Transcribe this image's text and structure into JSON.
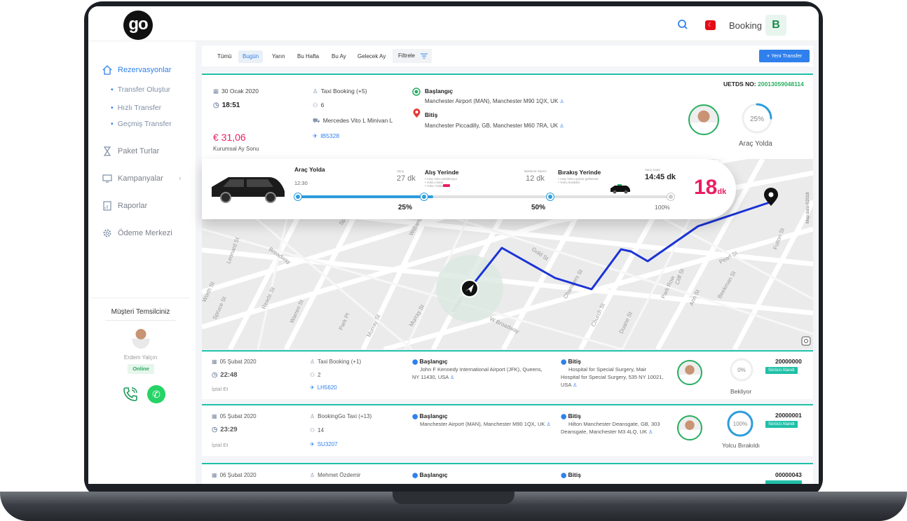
{
  "header": {
    "logo": "go",
    "booking_label": "Booking",
    "avatar_letter": "B",
    "flag_symbol": "☾"
  },
  "sidebar": {
    "items": [
      {
        "label": "Rezervasyonlar",
        "icon": "home-icon"
      },
      {
        "label": "Paket Turlar",
        "icon": "hourglass-icon"
      },
      {
        "label": "Kampanyalar",
        "icon": "monitor-icon",
        "chevron": "›"
      },
      {
        "label": "Raporlar",
        "icon": "report-icon"
      },
      {
        "label": "Ödeme Merkezi",
        "icon": "gear-icon"
      }
    ],
    "subitems": [
      "Transfer Oluştur",
      "Hızlı Transfer",
      "Geçmiş Transfer"
    ],
    "rep": {
      "title": "Müşteri Temsilciniz",
      "name": "Erdem Yalçın",
      "status": "Online",
      "wa": "✆"
    }
  },
  "filters": {
    "tabs": [
      "Tümü",
      "Bugün",
      "Yarın",
      "Bu Hafta",
      "Bu Ay",
      "Gelecek Ay"
    ],
    "active": "Bugün",
    "filter_label": "Filtrele",
    "new_transfer": "+ Yeni Transfer"
  },
  "current": {
    "date": "30 Ocak 2020",
    "time": "18:51",
    "price": "€ 31,06",
    "price_note": "Kurumsal Ay Sonu",
    "company": "Taxi Booking (+5)",
    "passengers": "6",
    "vehicle": "Mercedes Vito L Minivan L",
    "flight": "IB5328",
    "start_label": "Başlangıç",
    "start_addr": "Manchester Airport (MAN), Manchester M90 1QX, UK",
    "end_label": "Bitiş",
    "end_addr": "Manchester Piccadilly, GB, Manchester M60 7RA, UK",
    "uetds_label": "UETDS NO:",
    "uetds_no": "20013059048114",
    "progress_pct": "25%",
    "progress_value": 0.25,
    "status": "Araç Yolda",
    "stages": [
      {
        "title": "Araç Yolda",
        "time": "12:30",
        "sub": "Varış",
        "val": "27 dk",
        "pct": "25%"
      },
      {
        "title": "Alış Yerinde",
        "sub": "Bekleme Süresi",
        "val": "12 dk",
        "pct": "50%",
        "notes": [
          "• Araç Yolcu Bekleniyor",
          "• Yolcu Alındı",
          "• Yolcu Yolda"
        ]
      },
      {
        "title": "Bırakış Yerinde",
        "sub": "Varış Saati",
        "val": "14:45 dk",
        "pct": "100%",
        "notes": [
          "• Araç Yolcu yerine gelinecek",
          "• Yolcu bırakıldı"
        ]
      }
    ],
    "eta": "18",
    "eta_unit": "dk",
    "map_credit": "Map data ©2018",
    "streets": [
      "Leonard St",
      "Broadway",
      "Spruce St",
      "Gold St",
      "Williams St",
      "Fulton St",
      "William St",
      "Chambers St",
      "Worth St",
      "Reade St",
      "Warren St",
      "Park Pl",
      "Murray St",
      "Church St",
      "Duane St",
      "W Broadway",
      "Park Row",
      "Ann St",
      "Cliff St",
      "Beekman St",
      "Fulton St",
      "Pearl St",
      "Gold St",
      "Murray St",
      "Spruce St"
    ]
  },
  "rows": [
    {
      "date": "05 Şubat 2020",
      "time": "22:48",
      "cancel": "İptal Et",
      "company": "Taxi Booking (+1)",
      "pax": "2",
      "flight": "LH5620",
      "start_label": "Başlangıç",
      "start": "John F Kennedy International Airport (JFK), Queens, NY 11430, USA",
      "end_label": "Bitiş",
      "end": "Hospital for Special Surgery, Mair Hospital for Special Surgery, 535 NY 10021, USA",
      "pct": "0%",
      "pct_value": 0,
      "status": "Bekliyor",
      "no": "20000000",
      "badge": "Sürücü Atandı"
    },
    {
      "date": "05 Şubat 2020",
      "time": "23:29",
      "cancel": "İptal Et",
      "company": "BookingGo Taxi (+13)",
      "pax": "14",
      "flight": "SU3207",
      "start_label": "Başlangıç",
      "start": "Manchester Airport (MAN), Manchester M90 1QX, UK",
      "end_label": "Bitiş",
      "end": "Hilton Manchester Deansgate, GB, 303 Deansgate, Manchester M3 4LQ, UK",
      "pct": "100%",
      "pct_value": 1,
      "status": "Yolcu Bırakıldı",
      "no": "20000001",
      "badge": "Sürücü Atandı"
    },
    {
      "date": "06 Şubat 2020",
      "company": "Mehmet Özdemir",
      "start_label": "Başlangıç",
      "end_label": "Bitiş",
      "no": "00000043"
    }
  ]
}
